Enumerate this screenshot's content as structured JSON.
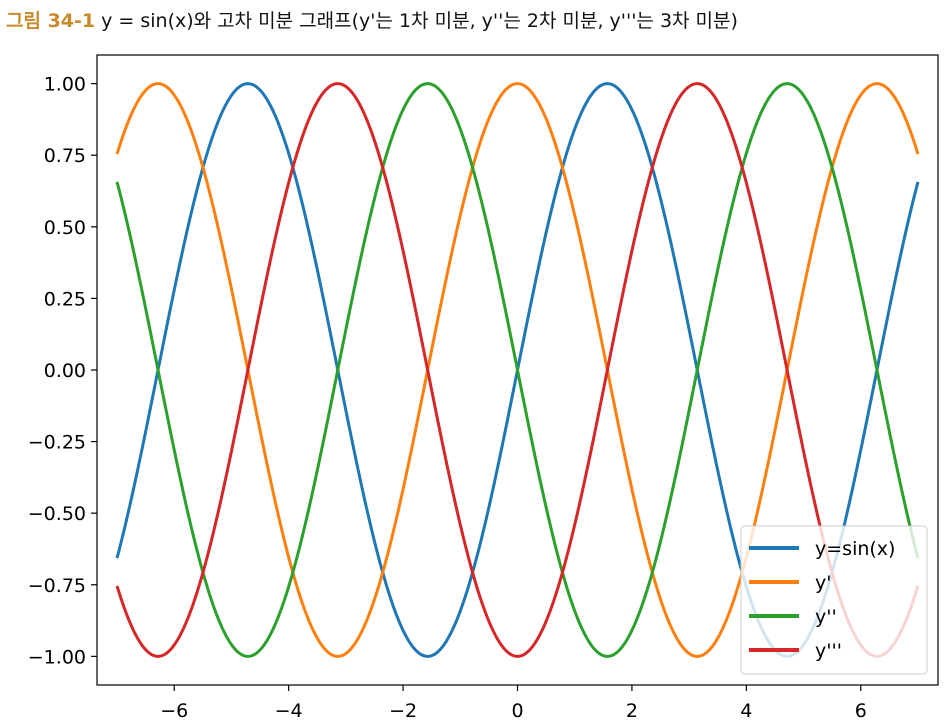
{
  "caption": {
    "figure_number": "그림 34-1",
    "text": "y = sin(x)와 고차 미분 그래프(y'는 1차 미분, y''는 2차 미분, y'''는 3차 미분)"
  },
  "chart_data": {
    "type": "line",
    "xlim": [
      -7.35,
      7.35
    ],
    "ylim": [
      -1.1,
      1.1
    ],
    "x_domain": [
      -7,
      7
    ],
    "xticks": [
      -6,
      -4,
      -2,
      0,
      2,
      4,
      6
    ],
    "yticks": [
      -1.0,
      -0.75,
      -0.5,
      -0.25,
      0.0,
      0.25,
      0.5,
      0.75,
      1.0
    ],
    "xtick_labels": [
      "−6",
      "−4",
      "−2",
      "0",
      "2",
      "4",
      "6"
    ],
    "ytick_labels": [
      "−1.00",
      "−0.75",
      "−0.50",
      "−0.25",
      "0.00",
      "0.25",
      "0.50",
      "0.75",
      "1.00"
    ],
    "grid": false,
    "legend_position": "lower-right",
    "series": [
      {
        "name": "y=sin(x)",
        "function": "sin(x)",
        "color": "#1f77b4"
      },
      {
        "name": "y'",
        "function": "cos(x)",
        "color": "#ff7f0e"
      },
      {
        "name": "y''",
        "function": "-sin(x)",
        "color": "#2ca02c"
      },
      {
        "name": "y'''",
        "function": "-cos(x)",
        "color": "#d62728"
      }
    ]
  }
}
